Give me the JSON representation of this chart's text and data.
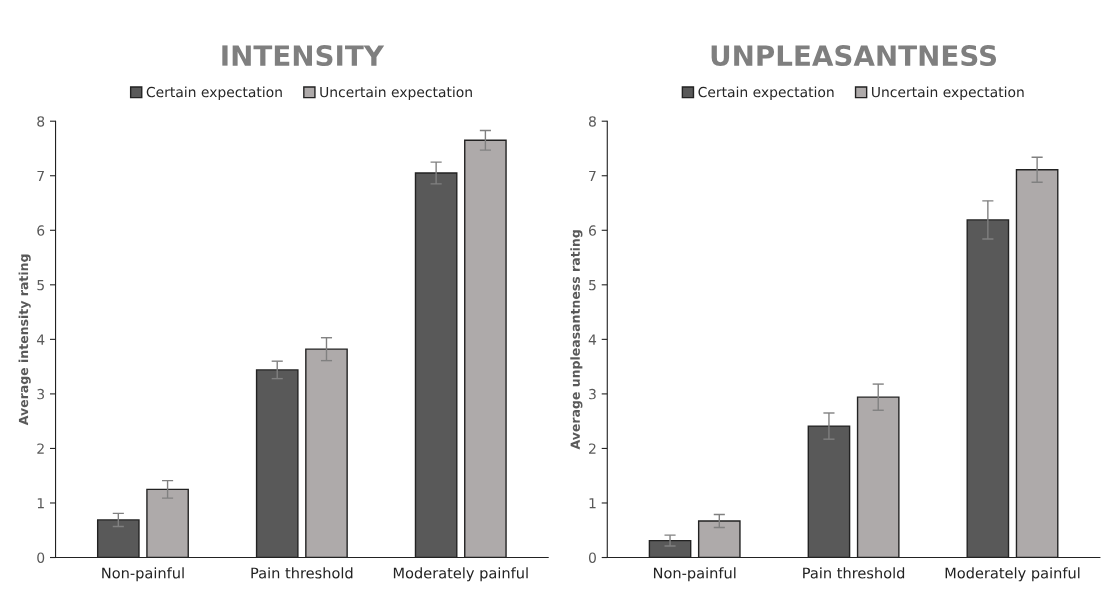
{
  "chart_data": [
    {
      "type": "bar",
      "title": "INTENSITY",
      "ylabel": "Average intensity rating",
      "categories": [
        "Non-painful",
        "Pain threshold",
        "Moderately painful"
      ],
      "series": [
        {
          "name": "Certain expectation",
          "color": "#595959",
          "values": [
            0.69,
            3.44,
            7.05
          ],
          "errors": [
            0.12,
            0.16,
            0.2
          ]
        },
        {
          "name": "Uncertain expectation",
          "color": "#aeaaaa",
          "values": [
            1.25,
            3.82,
            7.65
          ],
          "errors": [
            0.16,
            0.21,
            0.18
          ]
        }
      ],
      "ylim": [
        0,
        8
      ],
      "yticks": [
        0,
        1,
        2,
        3,
        4,
        5,
        6,
        7,
        8
      ],
      "grid": false,
      "legend": "top"
    },
    {
      "type": "bar",
      "title": "UNPLEASANTNESS",
      "ylabel": "Average unpleasantness rating",
      "categories": [
        "Non-painful",
        "Pain threshold",
        "Moderately painful"
      ],
      "series": [
        {
          "name": "Certain expectation",
          "color": "#595959",
          "values": [
            0.31,
            2.41,
            6.19
          ],
          "errors": [
            0.1,
            0.24,
            0.35
          ]
        },
        {
          "name": "Uncertain expectation",
          "color": "#aeaaaa",
          "values": [
            0.67,
            2.94,
            7.11
          ],
          "errors": [
            0.12,
            0.24,
            0.23
          ]
        }
      ],
      "ylim": [
        0,
        8
      ],
      "yticks": [
        0,
        1,
        2,
        3,
        4,
        5,
        6,
        7,
        8
      ],
      "grid": false,
      "legend": "top"
    }
  ]
}
